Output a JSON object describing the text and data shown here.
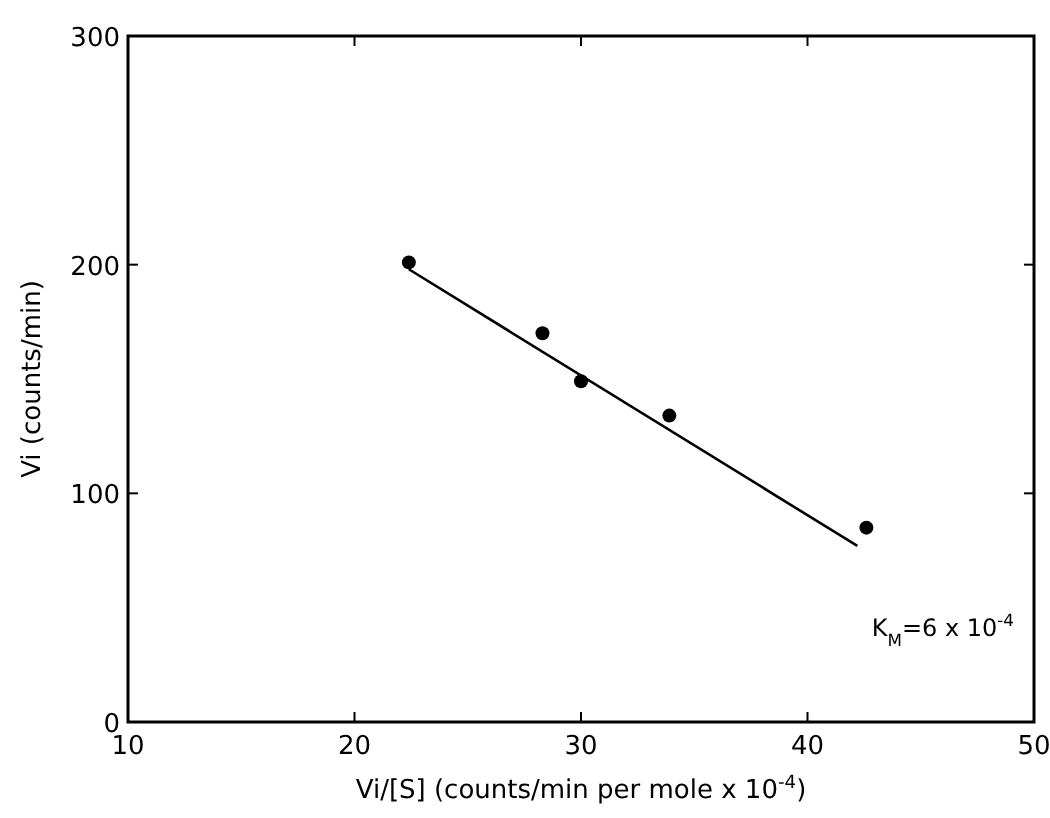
{
  "chart_data": {
    "type": "scatter",
    "xlabel": "Vi/[S] (counts/min per mole x 10$^{-4}$)",
    "ylabel": "Vi (counts/min)",
    "xlim": [
      10,
      50
    ],
    "ylim": [
      0,
      300
    ],
    "xticks": [
      10,
      20,
      30,
      40,
      50
    ],
    "yticks": [
      0,
      100,
      200,
      300
    ],
    "grid": false,
    "marker": "circle",
    "annotations": [
      "K$_{M}$=6 x 10$^{-4}$"
    ],
    "series": [
      {
        "color": "#000000",
        "x": [
          22.4,
          28.3,
          30,
          33.9,
          42.6
        ],
        "values": [
          201,
          170,
          149,
          134,
          85
        ]
      },
      {
        "type": "line",
        "color": "#000000",
        "line_style": "solid",
        "marker": "none",
        "x": [
          22.4,
          42.2
        ],
        "values": [
          198,
          77
        ]
      }
    ]
  }
}
